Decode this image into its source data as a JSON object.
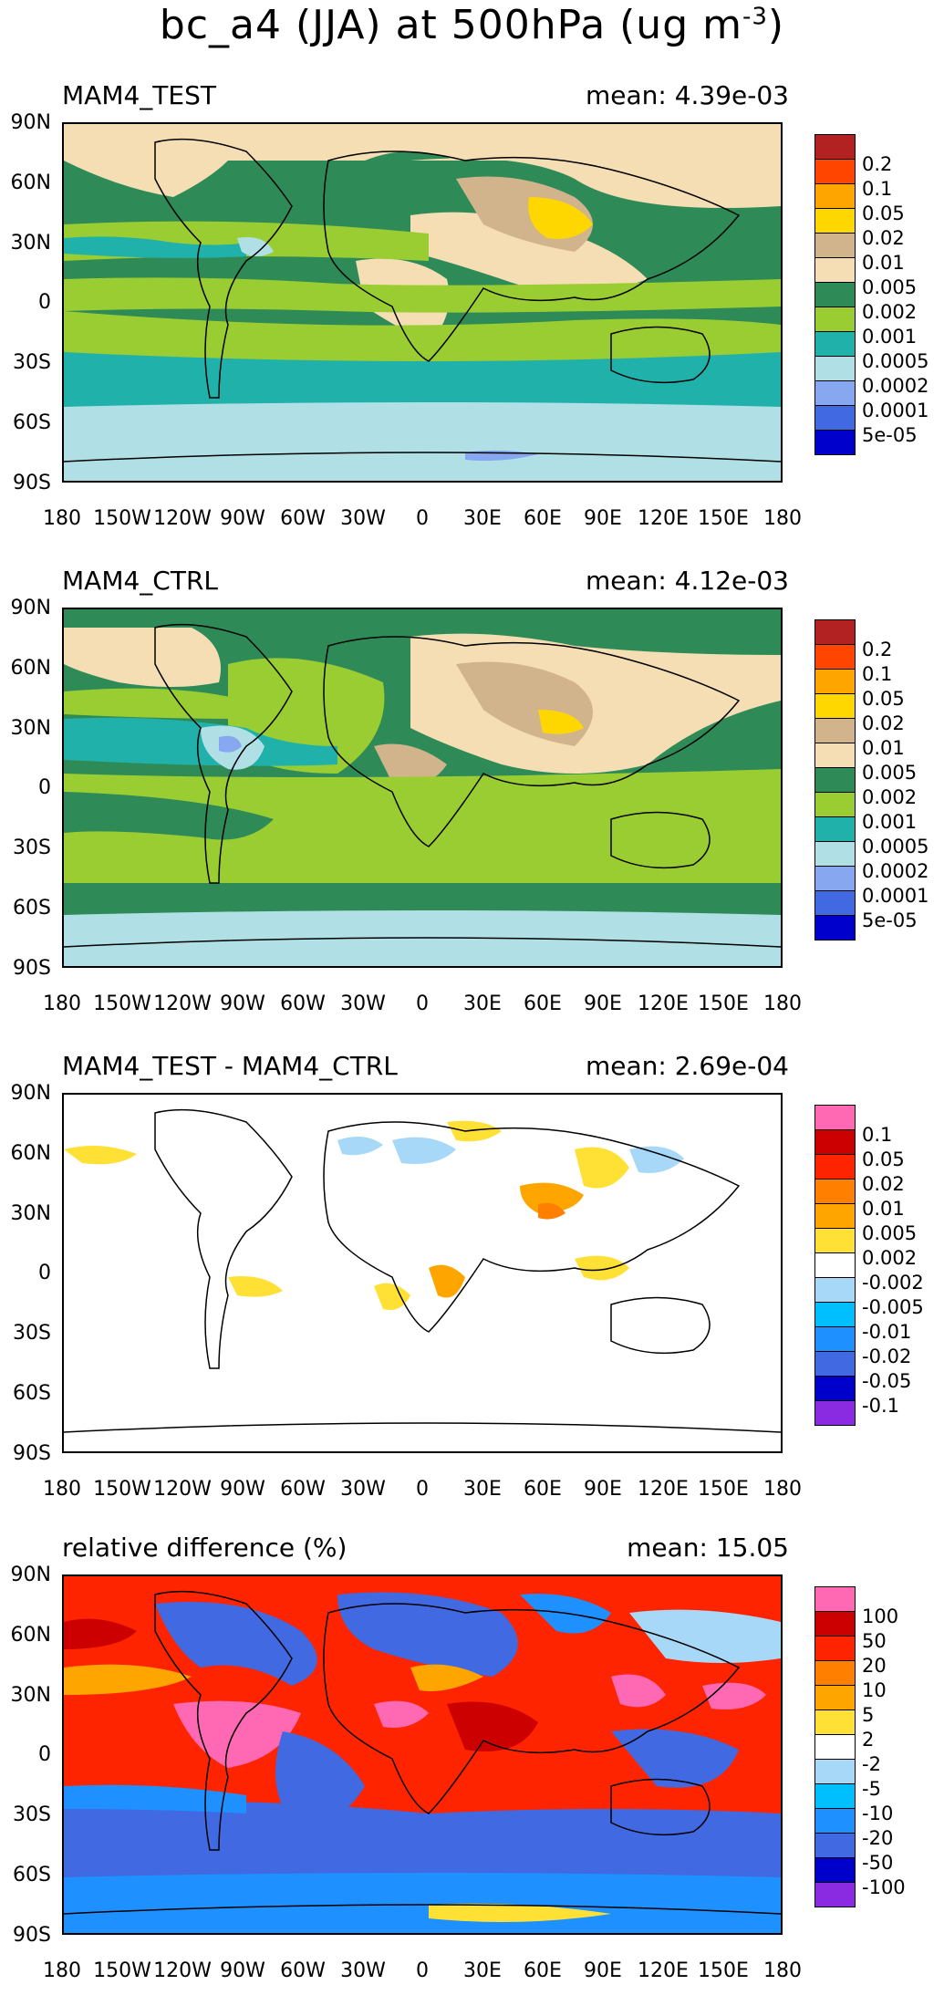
{
  "title": {
    "prefix": "bc_a4 (JJA) at 500hPa (ug m",
    "exp": "-3",
    "suffix": ")"
  },
  "lat_labels": [
    "90N",
    "60N",
    "30N",
    "0",
    "30S",
    "60S",
    "90S"
  ],
  "lon_labels": [
    "180",
    "150W",
    "120W",
    "90W",
    "60W",
    "30W",
    "0",
    "30E",
    "60E",
    "90E",
    "120E",
    "150E",
    "180"
  ],
  "panels": [
    {
      "title": "MAM4_TEST",
      "mean": "mean: 4.39e-03",
      "legend": [
        "0.2",
        "0.1",
        "0.05",
        "0.02",
        "0.01",
        "0.005",
        "0.002",
        "0.001",
        "0.0005",
        "0.0002",
        "0.0001",
        "5e-05"
      ],
      "colors": [
        "#b22222",
        "#ff4500",
        "#ffa500",
        "#ffd700",
        "#d2b48c",
        "#f5deb3",
        "#2e8b57",
        "#9acd32",
        "#20b2aa",
        "#b0e0e6",
        "#87a8f0",
        "#4169e1",
        "#0000cd"
      ]
    },
    {
      "title": "MAM4_CTRL",
      "mean": "mean: 4.12e-03",
      "legend": [
        "0.2",
        "0.1",
        "0.05",
        "0.02",
        "0.01",
        "0.005",
        "0.002",
        "0.001",
        "0.0005",
        "0.0002",
        "0.0001",
        "5e-05"
      ],
      "colors": [
        "#b22222",
        "#ff4500",
        "#ffa500",
        "#ffd700",
        "#d2b48c",
        "#f5deb3",
        "#2e8b57",
        "#9acd32",
        "#20b2aa",
        "#b0e0e6",
        "#87a8f0",
        "#4169e1",
        "#0000cd"
      ]
    },
    {
      "title": "MAM4_TEST - MAM4_CTRL",
      "mean": "mean: 2.69e-04",
      "legend": [
        "0.1",
        "0.05",
        "0.02",
        "0.01",
        "0.005",
        "0.002",
        "-0.002",
        "-0.005",
        "-0.01",
        "-0.02",
        "-0.05",
        "-0.1"
      ],
      "colors": [
        "#ff69b4",
        "#cc0000",
        "#ff2400",
        "#ff7f00",
        "#ffa500",
        "#ffe135",
        "#ffffff",
        "#a8d8f8",
        "#00bfff",
        "#1e90ff",
        "#4169e1",
        "#0000cd",
        "#8a2be2"
      ]
    },
    {
      "title": "relative difference (%)",
      "mean": "mean: 15.05",
      "legend": [
        "100",
        "50",
        "20",
        "10",
        "5",
        "2",
        "-2",
        "-5",
        "-10",
        "-20",
        "-50",
        "-100"
      ],
      "colors": [
        "#ff69b4",
        "#cc0000",
        "#ff2400",
        "#ff7f00",
        "#ffa500",
        "#ffe135",
        "#ffffff",
        "#a8d8f8",
        "#00bfff",
        "#1e90ff",
        "#4169e1",
        "#0000cd",
        "#8a2be2"
      ]
    }
  ],
  "chart_data": [
    {
      "type": "heatmap",
      "title": "MAM4_TEST",
      "subtitle": "mean: 4.39e-03",
      "xlim": [
        -180,
        180
      ],
      "ylim": [
        -90,
        90
      ],
      "xticks": [
        "180",
        "150W",
        "120W",
        "90W",
        "60W",
        "30W",
        "0",
        "30E",
        "60E",
        "90E",
        "120E",
        "150E",
        "180"
      ],
      "yticks": [
        "90N",
        "60N",
        "30N",
        "0",
        "30S",
        "60S",
        "90S"
      ],
      "levels": [
        5e-05,
        0.0001,
        0.0002,
        0.0005,
        0.001,
        0.002,
        0.005,
        0.01,
        0.02,
        0.05,
        0.1,
        0.2
      ],
      "mean": 0.00439
    },
    {
      "type": "heatmap",
      "title": "MAM4_CTRL",
      "subtitle": "mean: 4.12e-03",
      "xlim": [
        -180,
        180
      ],
      "ylim": [
        -90,
        90
      ],
      "levels": [
        5e-05,
        0.0001,
        0.0002,
        0.0005,
        0.001,
        0.002,
        0.005,
        0.01,
        0.02,
        0.05,
        0.1,
        0.2
      ],
      "mean": 0.00412
    },
    {
      "type": "heatmap",
      "title": "MAM4_TEST - MAM4_CTRL",
      "subtitle": "mean: 2.69e-04",
      "xlim": [
        -180,
        180
      ],
      "ylim": [
        -90,
        90
      ],
      "levels": [
        -0.1,
        -0.05,
        -0.02,
        -0.01,
        -0.005,
        -0.002,
        0.002,
        0.005,
        0.01,
        0.02,
        0.05,
        0.1
      ],
      "mean": 0.000269
    },
    {
      "type": "heatmap",
      "title": "relative difference (%)",
      "subtitle": "mean: 15.05",
      "xlim": [
        -180,
        180
      ],
      "ylim": [
        -90,
        90
      ],
      "levels": [
        -100,
        -50,
        -20,
        -10,
        -5,
        -2,
        2,
        5,
        10,
        20,
        50,
        100
      ],
      "mean": 15.05
    }
  ]
}
